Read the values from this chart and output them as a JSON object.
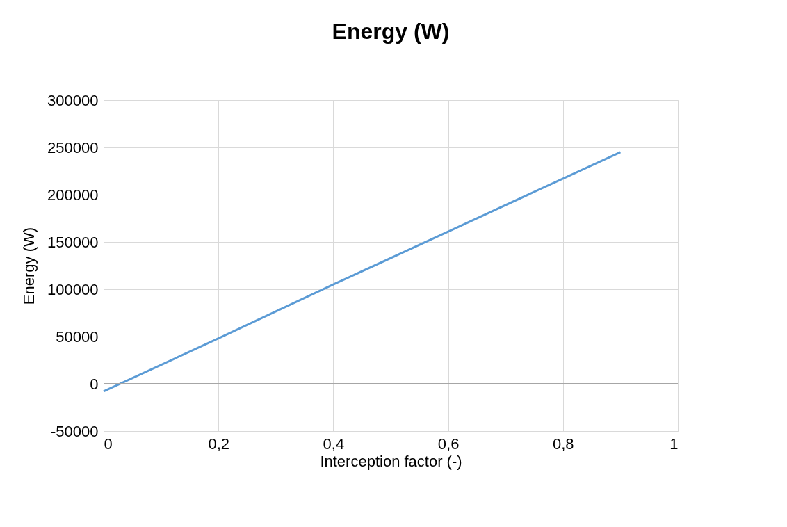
{
  "chart_data": {
    "type": "line",
    "title": "Energy (W)",
    "xlabel": "Interception factor (-)",
    "ylabel": "Energy (W)",
    "x": [
      0,
      0.2,
      0.4,
      0.6,
      0.8,
      0.9
    ],
    "series": [
      {
        "color": "#5b9bd5",
        "values": [
          -8000,
          48000,
          105000,
          161000,
          217000,
          245000
        ]
      }
    ],
    "xlim": [
      0,
      1
    ],
    "xticks": [
      0,
      {
        "value": 0.2,
        "label": "0,2"
      },
      {
        "value": 0.4,
        "label": "0,4"
      },
      {
        "value": 0.6,
        "label": "0,6"
      },
      {
        "value": 0.8,
        "label": "0,8"
      },
      1
    ],
    "ylim": [
      -50000,
      300000
    ],
    "yticks": [
      -50000,
      0,
      50000,
      100000,
      150000,
      200000,
      250000,
      300000
    ],
    "ref_lines": [
      {
        "axis": "y",
        "value": 0,
        "color": "#a6a6a6"
      }
    ],
    "grid": true,
    "marker": "none",
    "line_style": "solid"
  }
}
